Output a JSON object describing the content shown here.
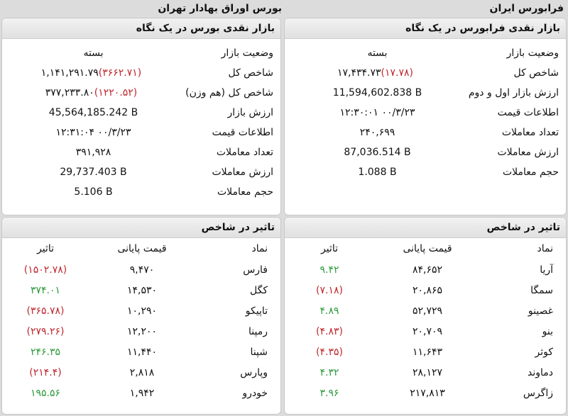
{
  "titles": {
    "right": "فرابورس ایران",
    "left": "بورس اوراق بهادار تهران"
  },
  "farabourse_market": {
    "header": "بازار نقدی فرابورس در یک نگاه",
    "rows": [
      {
        "label": "وضعیت بازار",
        "value": "بسته",
        "change": ""
      },
      {
        "label": "شاخص کل",
        "value": "۱۷,۴۳۴.۷۳",
        "change": "(۱۷.۷۸)"
      },
      {
        "label": "ارزش بازار اول و دوم",
        "value": "11,594,602.838 B",
        "change": ""
      },
      {
        "label": "اطلاعات قیمت",
        "value": "۱۲:۳۰:۰۱ ۰۰/۳/۲۳",
        "change": ""
      },
      {
        "label": "تعداد معاملات",
        "value": "۲۴۰,۶۹۹",
        "change": ""
      },
      {
        "label": "ارزش معاملات",
        "value": "87,036.514 B",
        "change": ""
      },
      {
        "label": "حجم معاملات",
        "value": "1.088 B",
        "change": ""
      }
    ]
  },
  "bourse_market": {
    "header": "بازار نقدی بورس در یک نگاه",
    "rows": [
      {
        "label": "وضعیت بازار",
        "value": "بسته",
        "change": ""
      },
      {
        "label": "شاخص کل",
        "value": "۱,۱۴۱,۲۹۱.۷۹",
        "change": "(۳۶۶۲.۷۱)"
      },
      {
        "label": "شاخص کل (هم وزن)",
        "value": "۳۷۷,۲۳۳.۸۰",
        "change": "(۱۲۲۰.۵۲)"
      },
      {
        "label": "ارزش بازار",
        "value": "45,564,185.242 B",
        "change": ""
      },
      {
        "label": "اطلاعات قیمت",
        "value": "۱۲:۳۱:۰۴ ۰۰/۳/۲۳",
        "change": ""
      },
      {
        "label": "تعداد معاملات",
        "value": "۳۹۱,۹۲۸",
        "change": ""
      },
      {
        "label": "ارزش معاملات",
        "value": "29,737.403 B",
        "change": ""
      },
      {
        "label": "حجم معاملات",
        "value": "5.106 B",
        "change": ""
      }
    ]
  },
  "farabourse_impact": {
    "header": "تاثیر در شاخص",
    "columns": {
      "symbol": "نماد",
      "price": "قیمت پایانی",
      "effect": "تاثیر"
    },
    "rows": [
      {
        "symbol": "آریا",
        "price": "۸۴,۶۵۲",
        "effect": "۹.۴۲",
        "sign": "pos"
      },
      {
        "symbol": "سمگا",
        "price": "۲۰,۸۶۵",
        "effect": "(۷.۱۸)",
        "sign": "neg"
      },
      {
        "symbol": "غصینو",
        "price": "۵۲,۷۲۹",
        "effect": "۴.۸۹",
        "sign": "pos"
      },
      {
        "symbol": "بنو",
        "price": "۲۰,۷۰۹",
        "effect": "(۴.۸۳)",
        "sign": "neg"
      },
      {
        "symbol": "کوثر",
        "price": "۱۱,۶۴۳",
        "effect": "(۴.۳۵)",
        "sign": "neg"
      },
      {
        "symbol": "دماوند",
        "price": "۲۸,۱۲۷",
        "effect": "۴.۳۲",
        "sign": "pos"
      },
      {
        "symbol": "زاگرس",
        "price": "۲۱۷,۸۱۳",
        "effect": "۳.۹۶",
        "sign": "pos"
      }
    ]
  },
  "bourse_impact": {
    "header": "تاثیر در شاخص",
    "columns": {
      "symbol": "نماد",
      "price": "قیمت پایانی",
      "effect": "تاثیر"
    },
    "rows": [
      {
        "symbol": "فارس",
        "price": "۹,۴۷۰",
        "effect": "(۱۵۰۲.۷۸)",
        "sign": "neg"
      },
      {
        "symbol": "کگل",
        "price": "۱۴,۵۳۰",
        "effect": "۳۷۴.۰۱",
        "sign": "pos"
      },
      {
        "symbol": "تاپیکو",
        "price": "۱۰,۲۹۰",
        "effect": "(۳۶۵.۷۸)",
        "sign": "neg"
      },
      {
        "symbol": "رمپنا",
        "price": "۱۲,۲۰۰",
        "effect": "(۲۷۹.۲۶)",
        "sign": "neg"
      },
      {
        "symbol": "شپنا",
        "price": "۱۱,۴۴۰",
        "effect": "۲۴۶.۳۵",
        "sign": "pos"
      },
      {
        "symbol": "وپارس",
        "price": "۲,۸۱۸",
        "effect": "(۲۱۴.۴)",
        "sign": "neg"
      },
      {
        "symbol": "خودرو",
        "price": "۱,۹۴۲",
        "effect": "۱۹۵.۵۶",
        "sign": "pos"
      }
    ]
  },
  "colors": {
    "negative": "#c0272d",
    "positive": "#2e9a3a"
  }
}
